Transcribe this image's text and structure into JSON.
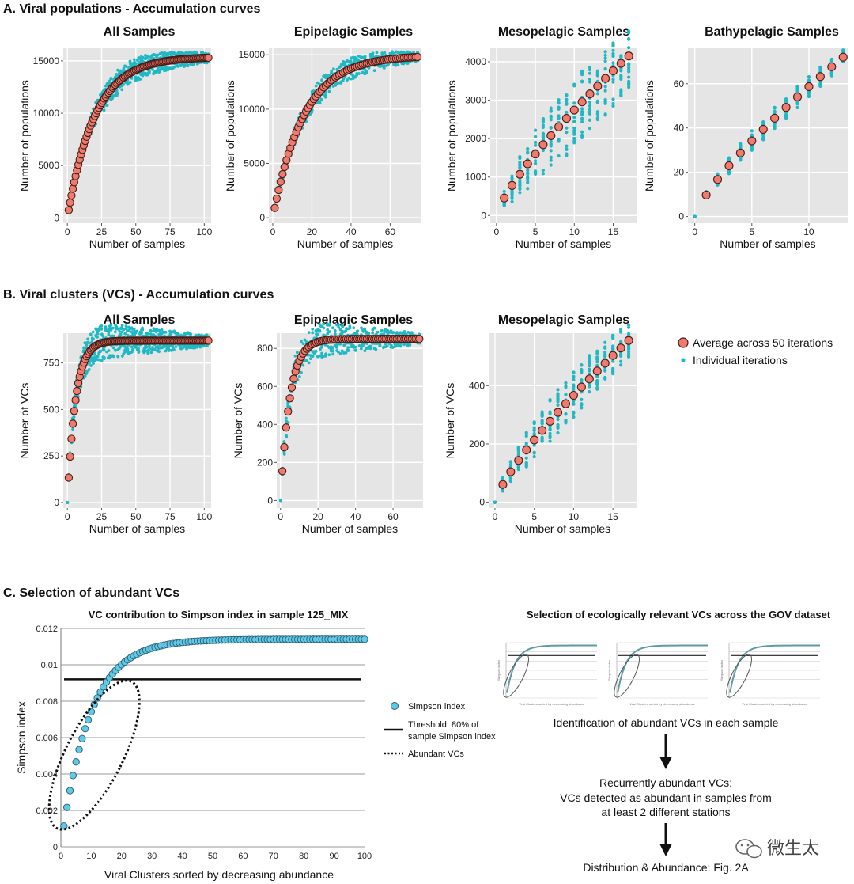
{
  "colors": {
    "panel_bg": "#e5e5e5",
    "grid": "#ffffff",
    "avg_fill": "#ef7b6e",
    "avg_stroke": "#4a1a14",
    "iter": "#20b8c4",
    "simpson_fill": "#5fc9e6",
    "simpson_stroke": "#2a5a72",
    "thumb_curve": "#5f9aa6"
  },
  "sections": {
    "a": "A. Viral populations - Accumulation curves",
    "b": "B. Viral clusters (VCs) - Accumulation curves",
    "c": "C. Selection of abundant VCs"
  },
  "legend_b": {
    "average": "Average across 50 iterations",
    "individual": "Individual iterations"
  },
  "section_c": {
    "left_title": "VC contribution to Simpson index in sample 125_MIX",
    "right_title": "Selection of ecologically relevant VCs across the GOV dataset",
    "legend": {
      "simpson": "Simpson index",
      "threshold_1": "Threshold: 80% of",
      "threshold_2": "sample Simpson index",
      "abundant": "Abundant VCs"
    },
    "flow": {
      "step1": "Identification of abundant VCs in each sample",
      "step2_1": "Recurrently abundant VCs:",
      "step2_2": "VCs detected as abundant in samples from",
      "step2_3": "at least 2 different stations",
      "step3": "Distribution & Abundance: Fig. 2A"
    },
    "thumb_xlabel": "Viral Clusters sorted by decreasing abundance",
    "thumb_ylabel": "Simpson index"
  },
  "watermark": "微生太",
  "chart_data": [
    {
      "id": "a1",
      "type": "scatter",
      "title": "All Samples",
      "xlabel": "Number of samples",
      "ylabel": "Number of populations",
      "xlim": [
        -3,
        105
      ],
      "ylim": [
        -500,
        16200
      ],
      "xticks": [
        0,
        25,
        50,
        75,
        100
      ],
      "yticks": [
        0,
        5000,
        10000,
        15000
      ],
      "n": 103,
      "max": 15300,
      "k": 20,
      "spread": 0.09
    },
    {
      "id": "a2",
      "type": "scatter",
      "title": "Epipelagic Samples",
      "xlabel": "Number of samples",
      "ylabel": "Number of populations",
      "xlim": [
        -2,
        76
      ],
      "ylim": [
        -500,
        15600
      ],
      "xticks": [
        0,
        20,
        40,
        60
      ],
      "yticks": [
        0,
        5000,
        10000,
        15000
      ],
      "n": 74,
      "max": 14800,
      "k": 16,
      "spread": 0.09
    },
    {
      "id": "a3",
      "type": "scatter",
      "title": "Mesopelagic Samples",
      "xlabel": "Number of samples",
      "ylabel": "Number of populations",
      "xlim": [
        -0.8,
        18
      ],
      "ylim": [
        -200,
        4350
      ],
      "xticks": [
        0,
        5,
        10,
        15
      ],
      "yticks": [
        0,
        1000,
        2000,
        3000,
        4000
      ],
      "n": 17,
      "max": 4150,
      "k": 0,
      "spread": 0.45
    },
    {
      "id": "a4",
      "type": "scatter",
      "title": "Bathypelagic Samples",
      "xlabel": "Number of samples",
      "ylabel": "Number of populations",
      "xlim": [
        -0.6,
        13.4
      ],
      "ylim": [
        -3,
        76
      ],
      "xticks": [
        0,
        5,
        10
      ],
      "yticks": [
        0,
        20,
        40,
        60
      ],
      "n": 13,
      "max": 72,
      "k": 0,
      "spread": 0.14,
      "zero_start": true
    },
    {
      "id": "b1",
      "type": "scatter",
      "title": "All Samples",
      "xlabel": "Number of samples",
      "ylabel": "Number of VCs",
      "xlim": [
        -3,
        105
      ],
      "ylim": [
        -30,
        910
      ],
      "xticks": [
        0,
        25,
        50,
        75,
        100
      ],
      "yticks": [
        0,
        250,
        500,
        750
      ],
      "n": 103,
      "max": 870,
      "k": 6,
      "spread": 0.1,
      "zero_start": true
    },
    {
      "id": "b2",
      "type": "scatter",
      "title": "Epipelagic Samples",
      "xlabel": "Number of samples",
      "ylabel": "Number of VCs",
      "xlim": [
        -2,
        76
      ],
      "ylim": [
        -40,
        880
      ],
      "xticks": [
        0,
        20,
        40,
        60
      ],
      "yticks": [
        0,
        200,
        400,
        600,
        800
      ],
      "n": 74,
      "max": 850,
      "k": 5,
      "spread": 0.1,
      "zero_start": true
    },
    {
      "id": "b3",
      "type": "scatter",
      "title": "Mesopelagic Samples",
      "xlabel": "Number of samples",
      "ylabel": "Number of VCs",
      "xlim": [
        -0.8,
        18
      ],
      "ylim": [
        -20,
        580
      ],
      "xticks": [
        0,
        5,
        10,
        15
      ],
      "yticks": [
        0,
        200,
        400
      ],
      "n": 17,
      "max": 555,
      "k": 0,
      "spread": 0.3,
      "zero_start": true
    },
    {
      "id": "c",
      "type": "scatter",
      "title": "VC contribution to Simpson index in sample 125_MIX",
      "xlabel": "Viral Clusters sorted by decreasing abundance",
      "ylabel": "Simpson index",
      "xlim": [
        0,
        100
      ],
      "ylim": [
        0,
        0.012
      ],
      "xticks": [
        0,
        10,
        20,
        30,
        40,
        50,
        60,
        70,
        80,
        90,
        100
      ],
      "yticks": [
        0,
        0.002,
        0.004,
        0.006,
        0.008,
        0.01,
        0.012
      ],
      "ytick_labels": [
        "0",
        "0.002",
        "0.004",
        "0.006",
        "0.008",
        "0.01",
        "0.012"
      ],
      "threshold": 0.0092,
      "n": 100,
      "max": 0.0114
    }
  ]
}
